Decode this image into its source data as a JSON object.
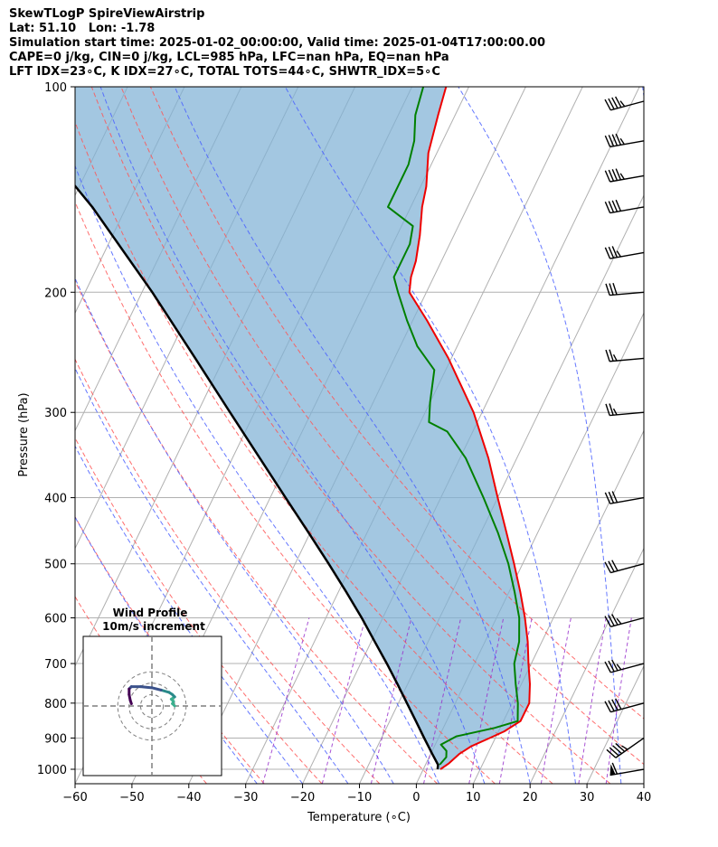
{
  "title_lines": [
    "SkewTLogP SpireViewAirstrip",
    "Lat: 51.10   Lon: -1.78",
    "Simulation start time: 2025-01-02_00:00:00, Valid time: 2025-01-04T17:00:00.00",
    "CAPE=0 j/kg, CIN=0 j/kg, LCL=985 hPa, LFC=nan hPa, EQ=nan hPa",
    "LFT IDX=23∘C, K IDX=27∘C, TOTAL TOTS=44∘C, SHWTR_IDX=5∘C"
  ],
  "chart_data": {
    "type": "skew-t log-p",
    "xlabel": "Temperature (∘C)",
    "ylabel": "Pressure (hPa)",
    "xlim": [
      -60,
      40
    ],
    "ylim": [
      1050,
      100
    ],
    "y_scale": "log",
    "x_ticks": [
      -60,
      -50,
      -40,
      -30,
      -20,
      -10,
      0,
      10,
      20,
      30,
      40
    ],
    "x_tick_labels": [
      "−60",
      "−50",
      "−40",
      "−30",
      "−20",
      "−10",
      "0",
      "10",
      "20",
      "30",
      "40"
    ],
    "y_ticks": [
      100,
      200,
      300,
      400,
      500,
      600,
      700,
      800,
      900,
      1000
    ],
    "y_tick_labels": [
      "100",
      "200",
      "300",
      "400",
      "500",
      "600",
      "700",
      "800",
      "900",
      "1000"
    ],
    "grid": true,
    "skew_deg_per_log_decade": 58,
    "temperature": {
      "color": "#ee0000",
      "p": [
        1000,
        980,
        950,
        925,
        900,
        880,
        850,
        800,
        750,
        700,
        650,
        600,
        550,
        500,
        450,
        400,
        350,
        300,
        250,
        220,
        200,
        190,
        180,
        165,
        150,
        140,
        125,
        110,
        100
      ],
      "t": [
        3,
        4,
        5,
        6.5,
        9,
        11,
        13,
        13,
        11.5,
        9.5,
        7.5,
        5,
        2,
        -1.5,
        -5.5,
        -10,
        -15,
        -21.5,
        -30.5,
        -37.5,
        -43,
        -44,
        -44.5,
        -46,
        -48,
        -49,
        -51.5,
        -53,
        -54
      ]
    },
    "dewpoint": {
      "color": "#008000",
      "p": [
        985,
        960,
        940,
        920,
        895,
        870,
        850,
        800,
        750,
        700,
        650,
        600,
        550,
        500,
        450,
        400,
        350,
        320,
        310,
        290,
        260,
        240,
        220,
        200,
        190,
        170,
        160,
        150,
        140,
        130,
        120,
        110,
        100
      ],
      "t": [
        2.5,
        3,
        2.5,
        1,
        3,
        9,
        12.5,
        11,
        9,
        7,
        6,
        4,
        1,
        -2.5,
        -7,
        -12.5,
        -19,
        -24.5,
        -28.5,
        -30,
        -32,
        -37,
        -41,
        -45,
        -47,
        -47,
        -48,
        -54,
        -54,
        -54,
        -55,
        -57,
        -58
      ]
    },
    "parcel_profile": {
      "color": "#000000",
      "p": [
        1000,
        985,
        950,
        900,
        850,
        800,
        750,
        700,
        650,
        600,
        550,
        500,
        450,
        400,
        350,
        300,
        250,
        200,
        150,
        100
      ],
      "t": [
        2.5,
        2.2,
        0.3,
        -2.5,
        -5.4,
        -8.5,
        -11.8,
        -15.4,
        -19.4,
        -23.7,
        -28.6,
        -34.1,
        -40.3,
        -47.3,
        -55.2,
        -64.3,
        -75,
        -88.2,
        -106,
        -133.5
      ]
    },
    "shaded_area": {
      "description": "CIN/CAPE shading between parcel profile and temperature",
      "color": "#7fb1d5"
    },
    "dry_adiabats": {
      "color": "#ff5555",
      "style": "dashed",
      "theta_K": [
        233,
        243,
        253,
        263,
        273,
        283,
        293,
        303,
        313,
        323
      ]
    },
    "moist_adiabats": {
      "color": "#4a60ff",
      "style": "dashed",
      "start_T_C": [
        -28,
        -20,
        -12,
        -4,
        4,
        12,
        20,
        28,
        36,
        44
      ]
    },
    "mixing_ratio_lines": {
      "color": "#9933cc",
      "style": "dashed",
      "w_gkg": [
        0.4,
        1,
        2,
        4,
        7,
        10,
        16,
        24,
        32
      ]
    },
    "wind_barbs": {
      "p": [
        1000,
        900,
        800,
        700,
        600,
        500,
        400,
        300,
        250,
        200,
        175,
        150,
        135,
        120,
        105
      ],
      "speed_kt": [
        60,
        45,
        40,
        35,
        35,
        30,
        30,
        25,
        25,
        30,
        35,
        40,
        45,
        45,
        45
      ],
      "direction_deg": [
        260,
        235,
        255,
        255,
        255,
        255,
        260,
        265,
        265,
        265,
        260,
        260,
        260,
        260,
        255
      ]
    },
    "inset": {
      "title": "Wind Profile",
      "subtitle": "10m/s increment",
      "ring_increment_ms": 10,
      "hodograph_u": [
        20,
        18,
        19,
        17,
        20,
        18,
        15,
        8,
        0,
        -10,
        -18,
        -20,
        -20,
        -19,
        -18
      ],
      "hodograph_v": [
        0,
        2,
        4,
        6,
        8,
        10,
        12,
        14,
        16,
        17,
        17,
        15,
        10,
        5,
        2
      ],
      "colors": [
        "#3bb08f",
        "#2a8a8a",
        "#3b528b",
        "#440154"
      ]
    }
  }
}
